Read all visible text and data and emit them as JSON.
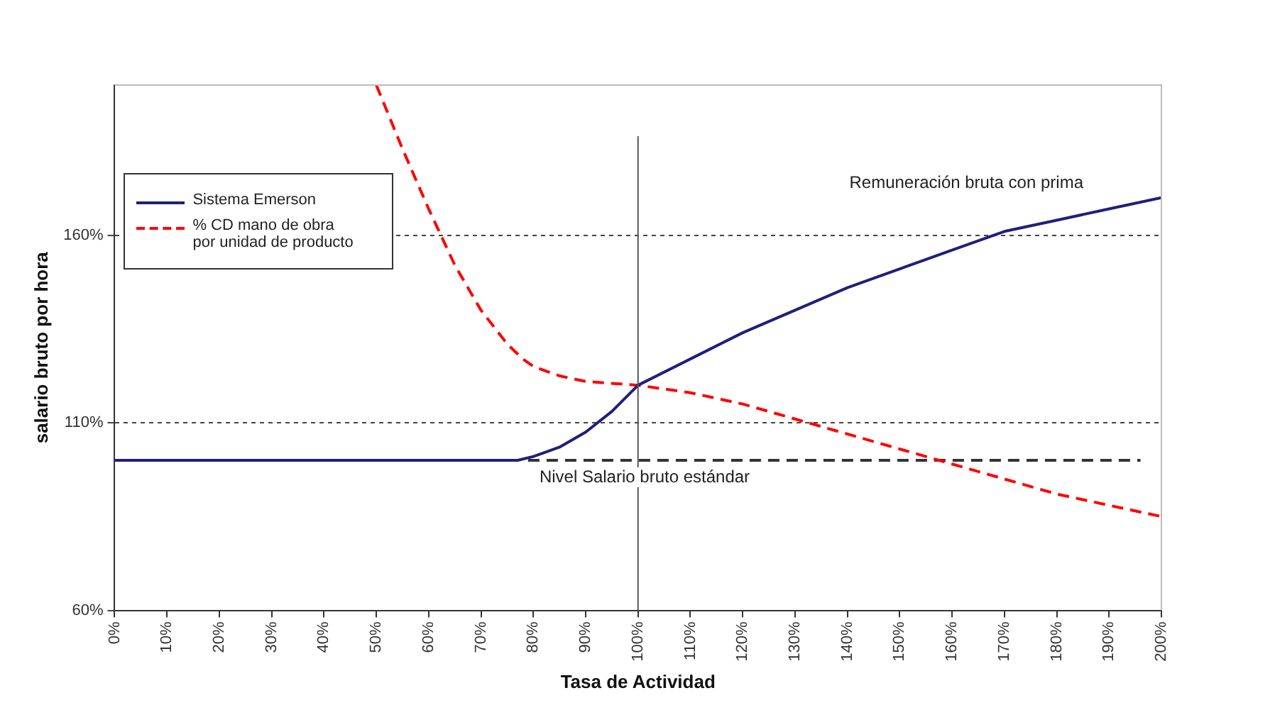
{
  "chart_data": {
    "type": "line",
    "xlabel": "Tasa de Actividad",
    "ylabel": "salario bruto por hora",
    "xlim": [
      0,
      200
    ],
    "xticks": [
      {
        "value": 0,
        "label": "0%"
      },
      {
        "value": 10,
        "label": "10%"
      },
      {
        "value": 20,
        "label": "20%"
      },
      {
        "value": 30,
        "label": "30%"
      },
      {
        "value": 40,
        "label": "40%"
      },
      {
        "value": 50,
        "label": "50%"
      },
      {
        "value": 60,
        "label": "60%"
      },
      {
        "value": 70,
        "label": "70%"
      },
      {
        "value": 80,
        "label": "80%"
      },
      {
        "value": 90,
        "label": "90%"
      },
      {
        "value": 100,
        "label": "100%"
      },
      {
        "value": 110,
        "label": "110%"
      },
      {
        "value": 120,
        "label": "120%"
      },
      {
        "value": 130,
        "label": "130%"
      },
      {
        "value": 140,
        "label": "140%"
      },
      {
        "value": 150,
        "label": "150%"
      },
      {
        "value": 160,
        "label": "160%"
      },
      {
        "value": 170,
        "label": "170%"
      },
      {
        "value": 180,
        "label": "180%"
      },
      {
        "value": 190,
        "label": "190%"
      },
      {
        "value": 200,
        "label": "200%"
      }
    ],
    "ylim": [
      60,
      200
    ],
    "yticks": [
      {
        "value": 60,
        "label": "60%"
      },
      {
        "value": 110,
        "label": "110%"
      },
      {
        "value": 160,
        "label": "160%"
      }
    ],
    "grid": "y",
    "legend": "top left",
    "marker": "none",
    "series": [
      {
        "name": "Sistema Emerson",
        "color": "#1f1f7a",
        "line_style": "solid",
        "x": [
          0,
          77,
          80,
          85,
          90,
          95,
          100,
          110,
          120,
          130,
          140,
          150,
          160,
          170,
          180,
          190,
          200
        ],
        "values": [
          100,
          100,
          101,
          103.5,
          107.5,
          113,
          120,
          127,
          134,
          140,
          146,
          151,
          156,
          161,
          164,
          167,
          170
        ]
      },
      {
        "name": "% CD mano de obra por unidad de producto",
        "color": "#ff0000",
        "line_style": "dashed",
        "x": [
          50,
          55,
          60,
          65,
          70,
          75,
          78,
          80,
          85,
          90,
          100,
          110,
          120,
          130,
          140,
          150,
          160,
          170,
          180,
          190,
          200
        ],
        "values": [
          200,
          183,
          167,
          152,
          140,
          131,
          127,
          125,
          122.5,
          121,
          120,
          118,
          115,
          111,
          107,
          103,
          99,
          95,
          91,
          88,
          85
        ]
      },
      {
        "color": "#333333",
        "line_style": "dashed",
        "x": [
          79,
          196
        ],
        "values": [
          100,
          100
        ]
      }
    ],
    "ref_lines": [
      {
        "axis": "x",
        "value": 100,
        "color": "#555555"
      }
    ],
    "annotations": [
      "Remuneración bruta con prima",
      "Nivel Salario bruto estándar"
    ]
  }
}
